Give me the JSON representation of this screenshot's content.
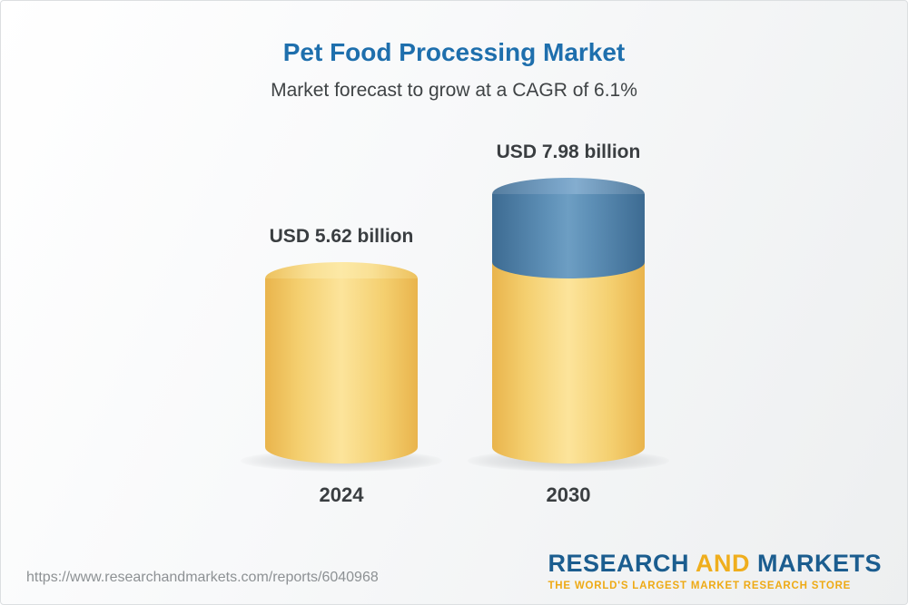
{
  "header": {
    "title": "Pet Food Processing Market",
    "subtitle": "Market forecast to grow at a CAGR of 6.1%"
  },
  "chart_data": {
    "type": "bar",
    "title": "Pet Food Processing Market",
    "subtitle": "Market forecast to grow at a CAGR of 6.1%",
    "cagr_percent": 6.1,
    "unit": "USD billion",
    "categories": [
      "2024",
      "2030"
    ],
    "values": [
      5.62,
      7.98
    ],
    "bars": [
      {
        "category": "2024",
        "value": 5.62,
        "label": "USD 5.62 billion",
        "body_color": "#f3cb66"
      },
      {
        "category": "2030",
        "value": 7.98,
        "label": "USD 7.98 billion",
        "body_color": "#f3cb66",
        "growth_segment_color": "#5d8fb6"
      }
    ],
    "legend": "none",
    "grid": false
  },
  "footer": {
    "url": "https://www.researchandmarkets.com/reports/6040968",
    "logo": {
      "word_research": "RESEARCH",
      "word_and": "AND",
      "word_markets": "MARKETS",
      "tagline": "THE WORLD'S LARGEST MARKET RESEARCH STORE"
    }
  },
  "colors": {
    "title_blue": "#1e6fad",
    "bar_yellow": "#f3cb66",
    "bar_blue": "#5d8fb6",
    "logo_blue": "#1b5d8f",
    "logo_gold": "#efae1d"
  }
}
